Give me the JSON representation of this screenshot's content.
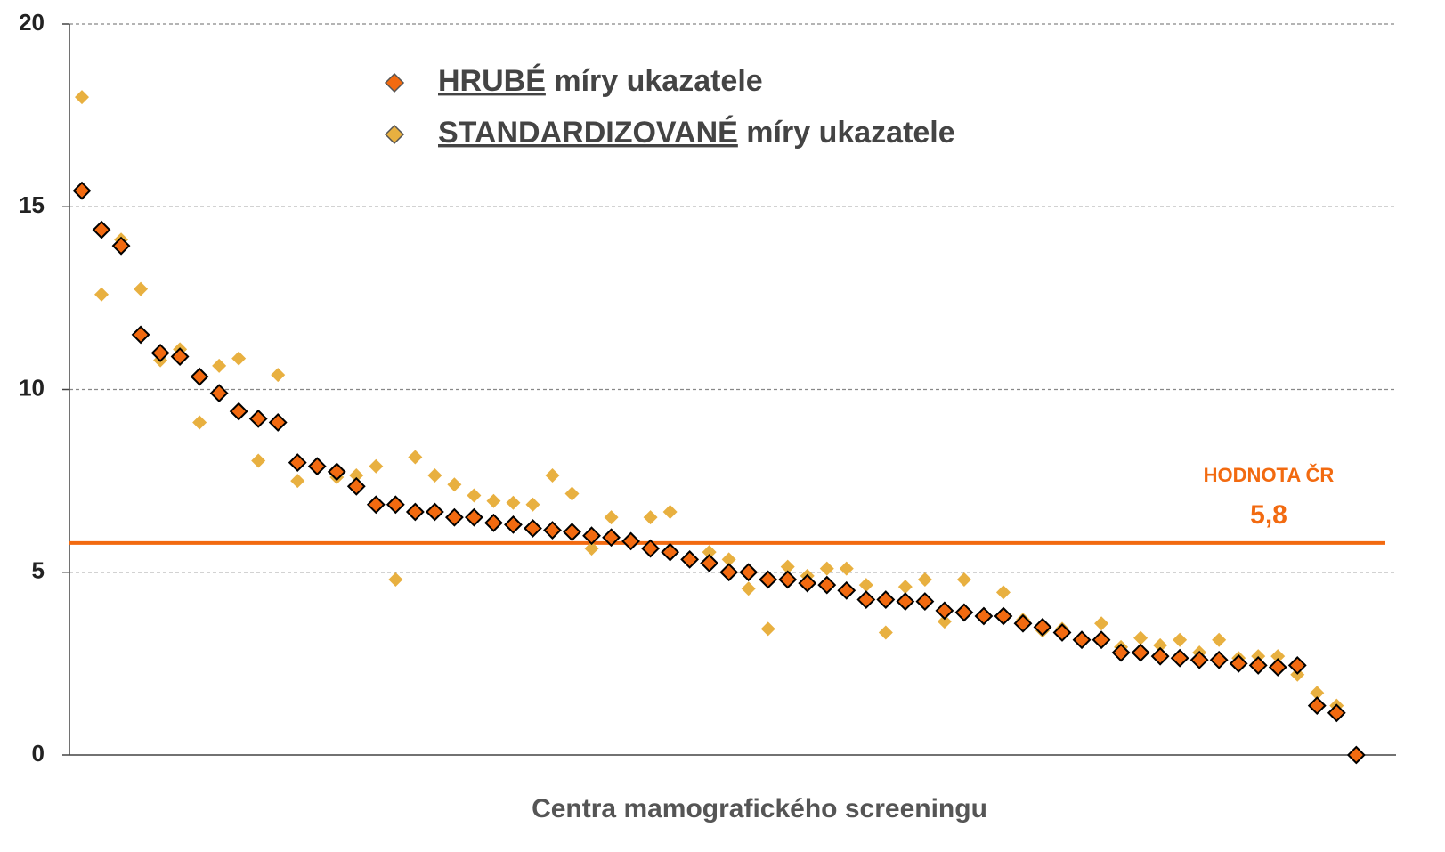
{
  "chart_data": {
    "type": "scatter",
    "x_label": "Centra mamografického screeningu",
    "categories": [
      null,
      null,
      null,
      null,
      null,
      null,
      null,
      null,
      null,
      null,
      null,
      null,
      null,
      null,
      null,
      null,
      null,
      null,
      null,
      null,
      null,
      null,
      null,
      null,
      null,
      null,
      null,
      null,
      null,
      null,
      null,
      null,
      null,
      null,
      null,
      null,
      null,
      null,
      null,
      null,
      null,
      null,
      null,
      null,
      null,
      null,
      null,
      null,
      null,
      null,
      null,
      null,
      null,
      null,
      null,
      null,
      null,
      null,
      null,
      null,
      null,
      null,
      null,
      null,
      null,
      null
    ],
    "ylim": [
      0,
      20
    ],
    "yticks": [
      0,
      5,
      10,
      15,
      20
    ],
    "grid": true,
    "series": [
      {
        "name": "STANDARDIZOVANÉ míry ukazatele",
        "color": "#e8b040",
        "values": [
          18.0,
          12.6,
          14.1,
          12.75,
          10.8,
          11.1,
          9.1,
          10.65,
          10.85,
          8.05,
          10.4,
          7.5,
          7.95,
          7.6,
          7.65,
          7.9,
          4.8,
          8.15,
          7.65,
          7.4,
          7.1,
          6.95,
          6.9,
          6.85,
          7.65,
          7.15,
          5.65,
          6.5,
          5.85,
          6.5,
          6.65,
          5.35,
          5.55,
          5.35,
          4.55,
          3.45,
          5.15,
          4.9,
          5.1,
          5.1,
          4.65,
          3.35,
          4.6,
          4.8,
          3.65,
          4.8,
          3.8,
          4.45,
          3.7,
          3.4,
          3.45,
          3.2,
          3.6,
          2.95,
          3.2,
          3.0,
          3.15,
          2.8,
          3.15,
          2.65,
          2.7,
          2.7,
          2.2,
          1.7,
          1.35,
          0
        ]
      },
      {
        "name": "HRUBÉ míry ukazatele",
        "color": "#f26a10",
        "values": [
          15.44,
          14.37,
          13.93,
          11.5,
          11.0,
          10.9,
          10.35,
          9.9,
          9.4,
          9.2,
          9.1,
          8.0,
          7.9,
          7.75,
          7.35,
          6.85,
          6.85,
          6.65,
          6.65,
          6.5,
          6.5,
          6.35,
          6.3,
          6.2,
          6.15,
          6.1,
          6.0,
          5.95,
          5.85,
          5.65,
          5.55,
          5.35,
          5.25,
          5.0,
          5.0,
          4.8,
          4.8,
          4.7,
          4.65,
          4.5,
          4.25,
          4.25,
          4.2,
          4.2,
          3.95,
          3.9,
          3.8,
          3.8,
          3.6,
          3.5,
          3.35,
          3.15,
          3.15,
          2.8,
          2.8,
          2.7,
          2.65,
          2.6,
          2.6,
          2.5,
          2.45,
          2.4,
          2.45,
          1.35,
          1.15,
          0
        ]
      }
    ],
    "reference_line": {
      "label": "HODNOTA ČR",
      "value": 5.8,
      "value_label": "5,8",
      "color": "#f26a10"
    }
  }
}
